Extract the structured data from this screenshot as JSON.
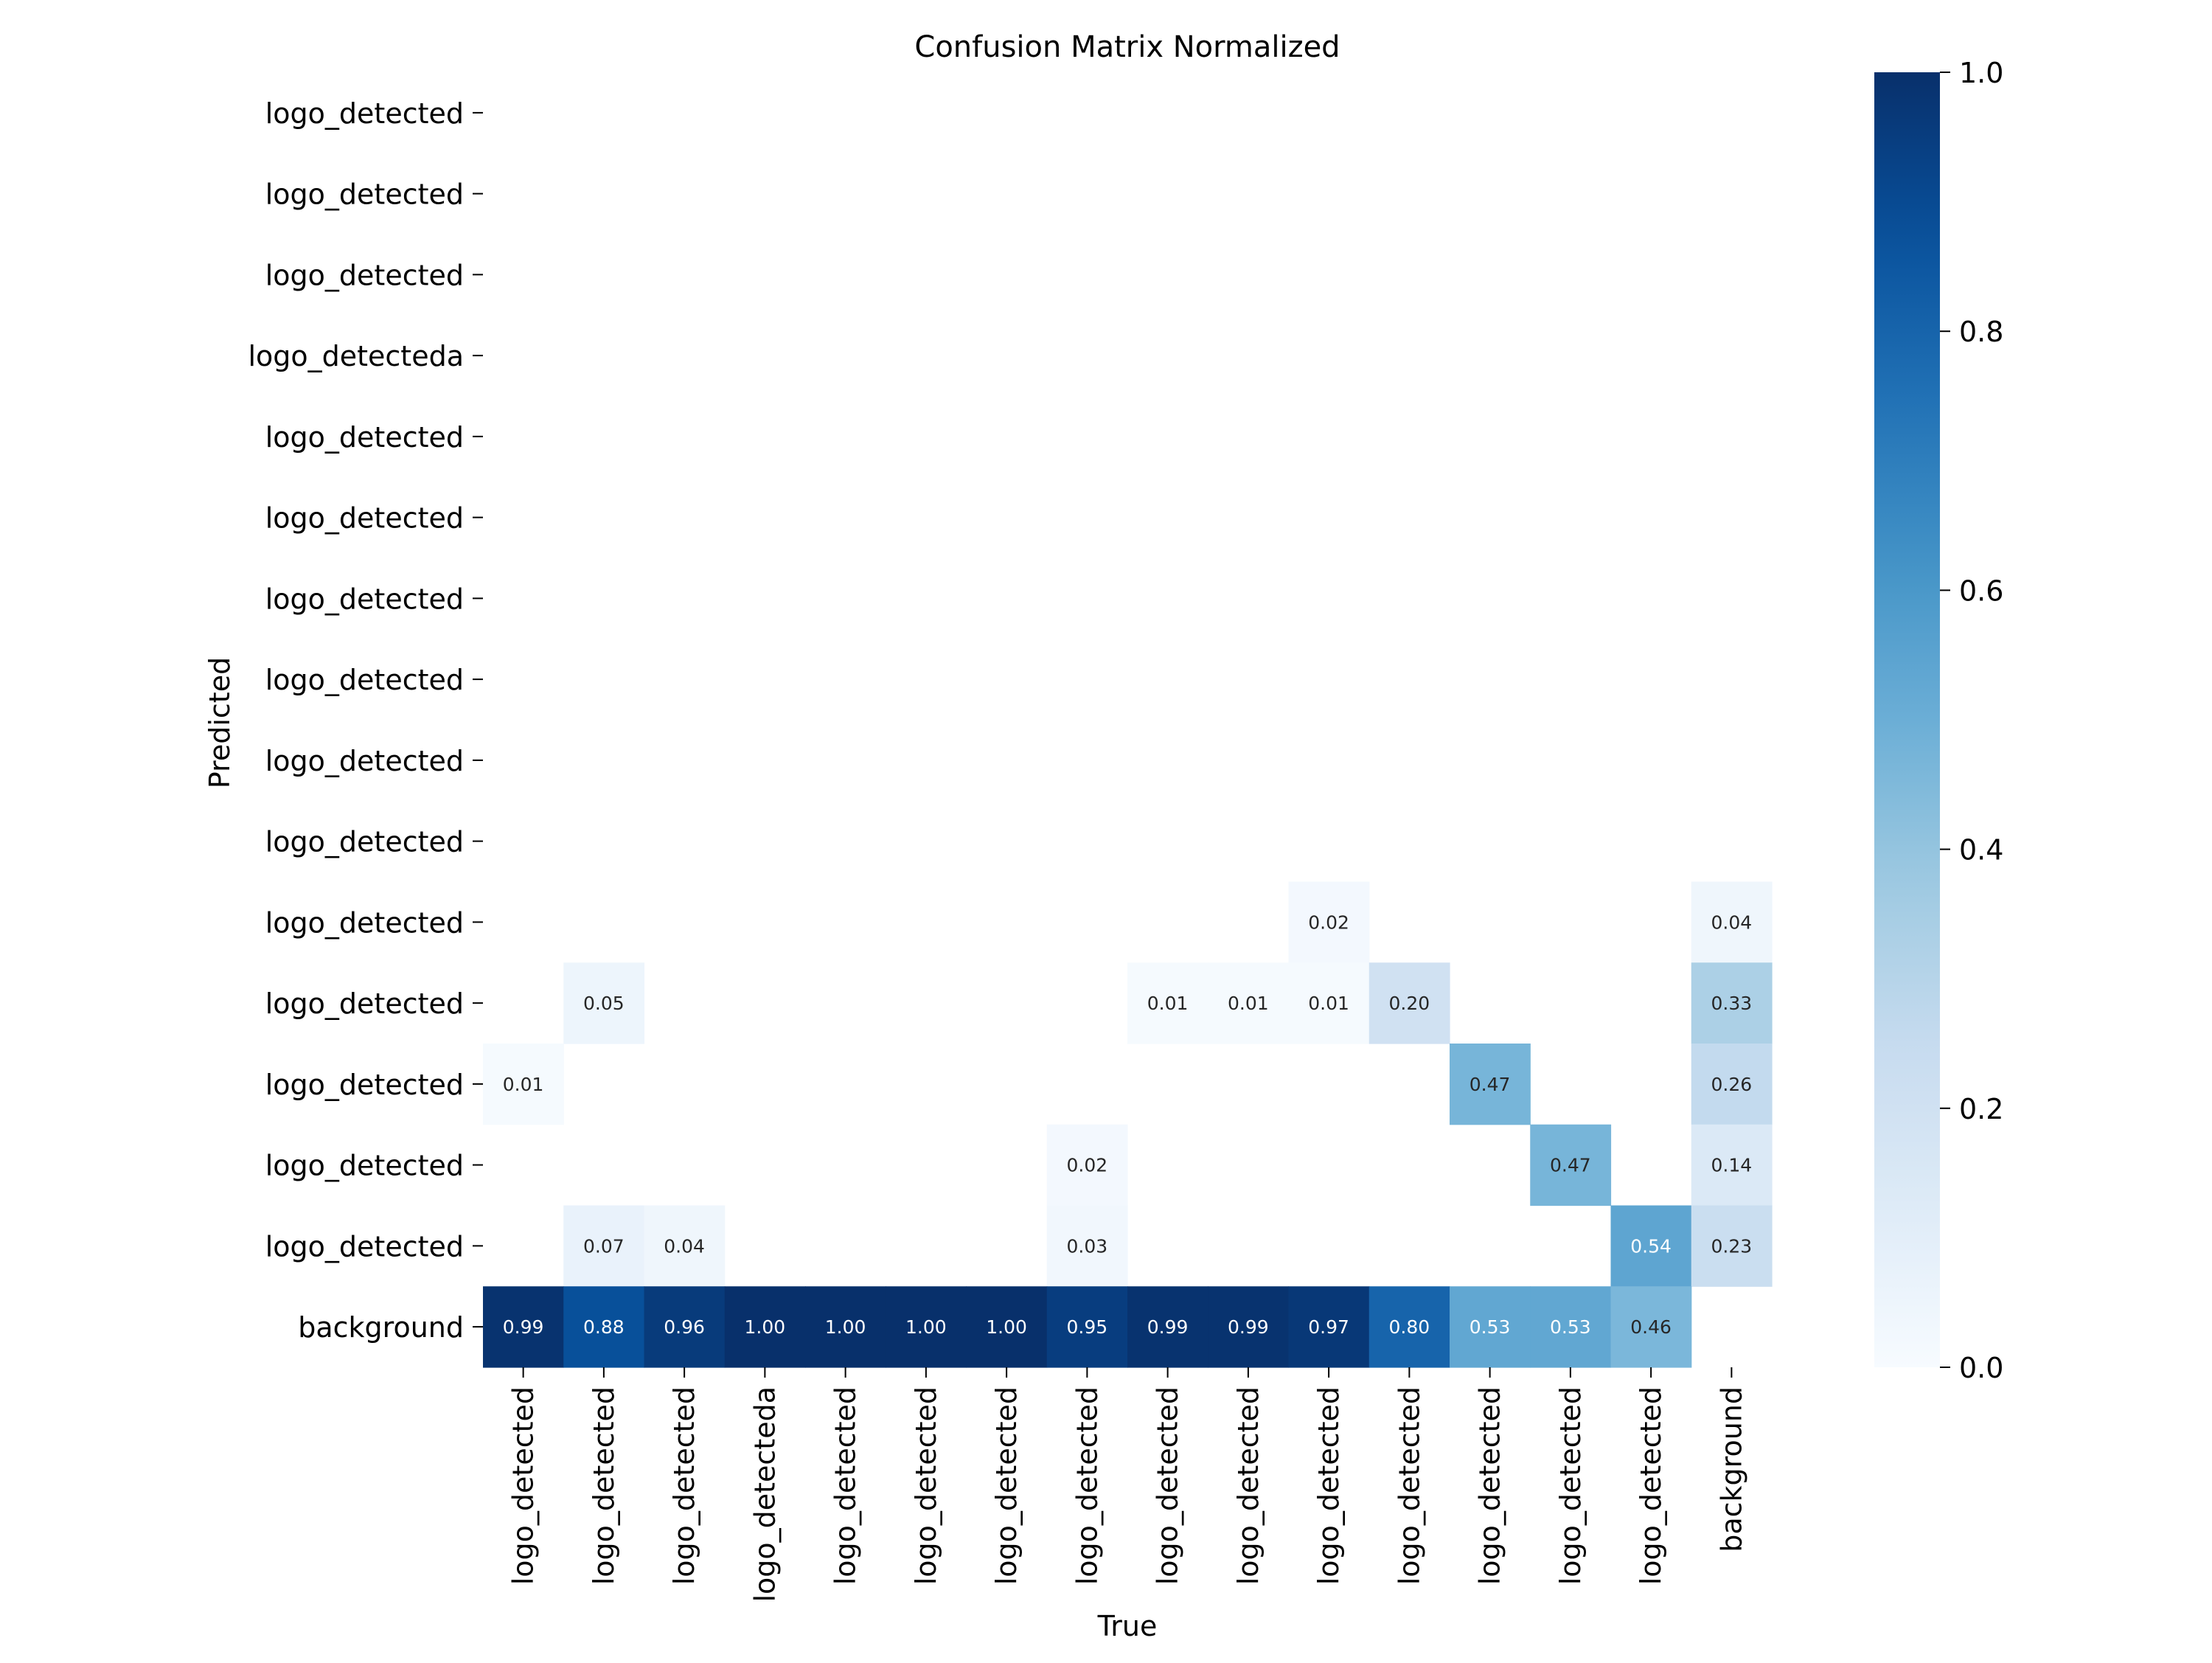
{
  "chart_data": {
    "type": "heatmap",
    "title": "Confusion Matrix Normalized",
    "xlabel": "True",
    "ylabel": "Predicted",
    "x_categories": [
      "logo_detected",
      "logo_detected",
      "logo_detected",
      "logo_detecteda",
      "logo_detected",
      "logo_detected",
      "logo_detected",
      "logo_detected",
      "logo_detected",
      "logo_detected",
      "logo_detected",
      "logo_detected",
      "logo_detected",
      "logo_detected",
      "logo_detected",
      "background"
    ],
    "y_categories": [
      "logo_detected",
      "logo_detected",
      "logo_detected",
      "logo_detecteda",
      "logo_detected",
      "logo_detected",
      "logo_detected",
      "logo_detected",
      "logo_detected",
      "logo_detected",
      "logo_detected",
      "logo_detected",
      "logo_detected",
      "logo_detected",
      "logo_detected",
      "background"
    ],
    "values": [
      [
        null,
        null,
        null,
        null,
        null,
        null,
        null,
        null,
        null,
        null,
        null,
        null,
        null,
        null,
        null,
        null
      ],
      [
        null,
        null,
        null,
        null,
        null,
        null,
        null,
        null,
        null,
        null,
        null,
        null,
        null,
        null,
        null,
        null
      ],
      [
        null,
        null,
        null,
        null,
        null,
        null,
        null,
        null,
        null,
        null,
        null,
        null,
        null,
        null,
        null,
        null
      ],
      [
        null,
        null,
        null,
        null,
        null,
        null,
        null,
        null,
        null,
        null,
        null,
        null,
        null,
        null,
        null,
        null
      ],
      [
        null,
        null,
        null,
        null,
        null,
        null,
        null,
        null,
        null,
        null,
        null,
        null,
        null,
        null,
        null,
        null
      ],
      [
        null,
        null,
        null,
        null,
        null,
        null,
        null,
        null,
        null,
        null,
        null,
        null,
        null,
        null,
        null,
        null
      ],
      [
        null,
        null,
        null,
        null,
        null,
        null,
        null,
        null,
        null,
        null,
        null,
        null,
        null,
        null,
        null,
        null
      ],
      [
        null,
        null,
        null,
        null,
        null,
        null,
        null,
        null,
        null,
        null,
        null,
        null,
        null,
        null,
        null,
        null
      ],
      [
        null,
        null,
        null,
        null,
        null,
        null,
        null,
        null,
        null,
        null,
        null,
        null,
        null,
        null,
        null,
        null
      ],
      [
        null,
        null,
        null,
        null,
        null,
        null,
        null,
        null,
        null,
        null,
        null,
        null,
        null,
        null,
        null,
        null
      ],
      [
        null,
        null,
        null,
        null,
        null,
        null,
        null,
        null,
        null,
        null,
        0.02,
        null,
        null,
        null,
        null,
        0.04
      ],
      [
        null,
        0.05,
        null,
        null,
        null,
        null,
        null,
        null,
        0.01,
        0.01,
        0.01,
        0.2,
        null,
        null,
        null,
        0.33
      ],
      [
        0.01,
        null,
        null,
        null,
        null,
        null,
        null,
        null,
        null,
        null,
        null,
        null,
        0.47,
        null,
        null,
        0.26
      ],
      [
        null,
        null,
        null,
        null,
        null,
        null,
        null,
        0.02,
        null,
        null,
        null,
        null,
        null,
        0.47,
        null,
        0.14
      ],
      [
        null,
        0.07,
        0.04,
        null,
        null,
        null,
        null,
        0.03,
        null,
        null,
        null,
        null,
        null,
        null,
        0.54,
        0.23
      ],
      [
        0.99,
        0.88,
        0.96,
        1.0,
        1.0,
        1.0,
        1.0,
        0.95,
        0.99,
        0.99,
        0.97,
        0.8,
        0.53,
        0.53,
        0.46,
        null
      ]
    ],
    "colormap": "Blues",
    "colorbar": {
      "range": [
        0.0,
        1.0
      ],
      "ticks": [
        0.0,
        0.2,
        0.4,
        0.6,
        0.8,
        1.0
      ]
    },
    "grid": false
  }
}
